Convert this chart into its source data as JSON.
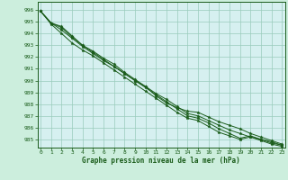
{
  "xlabel": "Graphe pression niveau de la mer (hPa)",
  "xlim": [
    -0.3,
    23.3
  ],
  "ylim": [
    984.3,
    996.7
  ],
  "yticks": [
    985,
    986,
    987,
    988,
    989,
    990,
    991,
    992,
    993,
    994,
    995,
    996
  ],
  "xticks": [
    0,
    1,
    2,
    3,
    4,
    5,
    6,
    7,
    8,
    9,
    10,
    11,
    12,
    13,
    14,
    15,
    16,
    17,
    18,
    19,
    20,
    21,
    22,
    23
  ],
  "background_color": "#cceedd",
  "plot_bg_color": "#d6f0f0",
  "grid_color": "#99ccbb",
  "line_color": "#1a5c1a",
  "lines": [
    [
      995.9,
      994.9,
      994.3,
      993.6,
      992.9,
      992.3,
      991.7,
      991.2,
      990.6,
      990.0,
      989.5,
      988.9,
      988.4,
      987.8,
      987.2,
      987.0,
      986.6,
      986.2,
      985.8,
      985.5,
      985.2,
      984.9,
      984.6,
      984.4
    ],
    [
      995.9,
      994.8,
      994.0,
      993.2,
      992.6,
      992.1,
      991.5,
      990.9,
      990.3,
      989.7,
      989.1,
      988.5,
      987.9,
      987.3,
      986.8,
      986.6,
      986.1,
      985.6,
      985.3,
      985.0,
      985.2,
      985.0,
      984.8,
      984.5
    ],
    [
      995.9,
      994.9,
      994.6,
      993.8,
      993.0,
      992.5,
      991.9,
      991.4,
      990.7,
      990.1,
      989.5,
      988.7,
      988.1,
      987.7,
      987.4,
      987.3,
      986.9,
      986.5,
      986.2,
      985.9,
      985.5,
      985.2,
      984.9,
      984.6
    ],
    [
      995.9,
      994.9,
      994.5,
      993.7,
      993.0,
      992.4,
      991.8,
      991.2,
      990.6,
      990.0,
      989.4,
      988.8,
      988.2,
      987.6,
      987.0,
      986.8,
      986.4,
      985.9,
      985.5,
      985.1,
      985.3,
      985.0,
      984.7,
      984.5
    ]
  ]
}
